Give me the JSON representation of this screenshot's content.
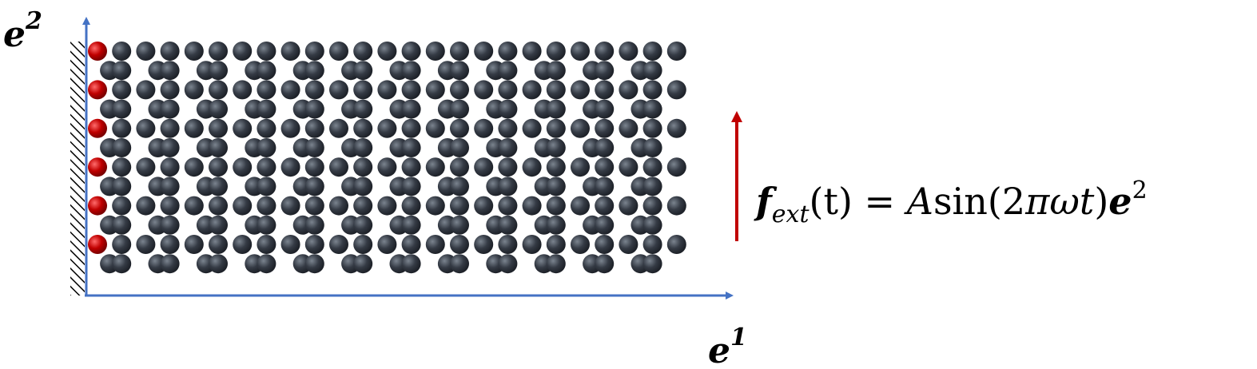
{
  "axes": {
    "e1": {
      "base": "e",
      "sup": "1"
    },
    "e2": {
      "base": "e",
      "sup": "2"
    },
    "color": "#4472c4"
  },
  "lattice": {
    "atom_color": "#2f3640",
    "atom_highlight": "#7b848f",
    "fixed_atom_color": "#c00000",
    "fixed_atom_highlight": "#ff6b6b",
    "columns": 25,
    "rows": 12
  },
  "wall": {
    "hatch_color": "#000000"
  },
  "force": {
    "color": "#c00000",
    "label": {
      "f": "f",
      "sub": "ext",
      "t_part": "(t) = ",
      "A": "A",
      "sin_part": "sin(2",
      "pi": "π",
      "omega_t": "ωt",
      "close": ")",
      "e": "e",
      "sup": "2"
    }
  }
}
